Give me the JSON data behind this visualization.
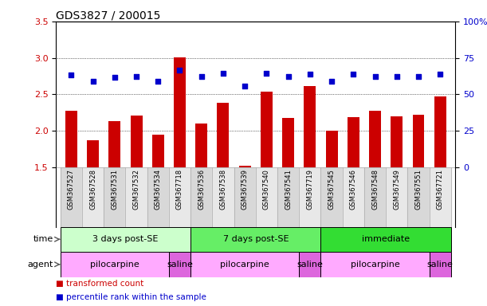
{
  "title": "GDS3827 / 200015",
  "samples": [
    "GSM367527",
    "GSM367528",
    "GSM367531",
    "GSM367532",
    "GSM367534",
    "GSM367718",
    "GSM367536",
    "GSM367538",
    "GSM367539",
    "GSM367540",
    "GSM367541",
    "GSM367719",
    "GSM367545",
    "GSM367546",
    "GSM367548",
    "GSM367549",
    "GSM367551",
    "GSM367721"
  ],
  "bar_values": [
    2.27,
    1.87,
    2.13,
    2.21,
    1.95,
    3.01,
    2.1,
    2.38,
    1.52,
    2.54,
    2.18,
    2.62,
    2.0,
    2.19,
    2.28,
    2.2,
    2.22,
    2.47
  ],
  "dot_values": [
    2.77,
    2.68,
    2.73,
    2.75,
    2.68,
    2.83,
    2.75,
    2.79,
    2.62,
    2.79,
    2.75,
    2.78,
    2.68,
    2.78,
    2.75,
    2.75,
    2.75,
    2.78
  ],
  "ylim": [
    1.5,
    3.5
  ],
  "yticks_left": [
    1.5,
    2.0,
    2.5,
    3.0,
    3.5
  ],
  "yticks_right": [
    0,
    25,
    50,
    75,
    100
  ],
  "bar_color": "#cc0000",
  "dot_color": "#0000cc",
  "bar_bottom": 1.5,
  "time_groups": [
    {
      "label": "3 days post-SE",
      "start": 0,
      "end": 5,
      "color": "#ccffcc"
    },
    {
      "label": "7 days post-SE",
      "start": 6,
      "end": 11,
      "color": "#66ee66"
    },
    {
      "label": "immediate",
      "start": 12,
      "end": 17,
      "color": "#33dd33"
    }
  ],
  "agent_groups": [
    {
      "label": "pilocarpine",
      "start": 0,
      "end": 4,
      "color": "#ffaaff"
    },
    {
      "label": "saline",
      "start": 5,
      "end": 5,
      "color": "#dd66dd"
    },
    {
      "label": "pilocarpine",
      "start": 6,
      "end": 10,
      "color": "#ffaaff"
    },
    {
      "label": "saline",
      "start": 11,
      "end": 11,
      "color": "#dd66dd"
    },
    {
      "label": "pilocarpine",
      "start": 12,
      "end": 16,
      "color": "#ffaaff"
    },
    {
      "label": "saline",
      "start": 17,
      "end": 17,
      "color": "#dd66dd"
    }
  ],
  "legend_items": [
    {
      "label": "transformed count",
      "color": "#cc0000"
    },
    {
      "label": "percentile rank within the sample",
      "color": "#0000cc"
    }
  ],
  "col_colors": [
    "#d8d8d8",
    "#e8e8e8"
  ]
}
